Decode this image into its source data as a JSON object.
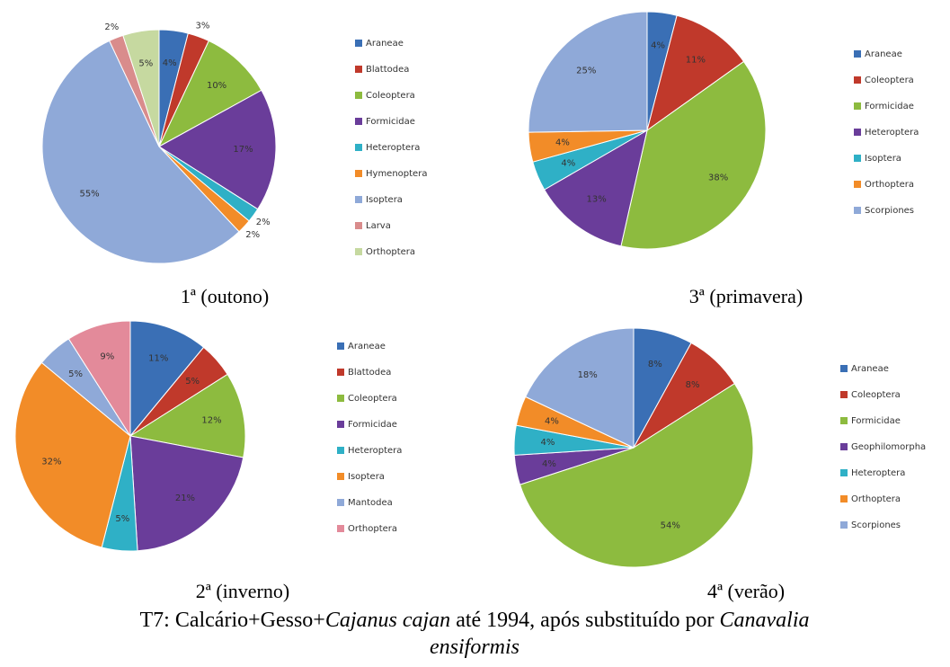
{
  "chart_data": [
    {
      "type": "pie",
      "title": "1ª (outono)",
      "categories": [
        "Araneae",
        "Blattodea",
        "Coleoptera",
        "Formicidae",
        "Heteroptera",
        "Hymenoptera",
        "Isoptera",
        "Larva",
        "Orthoptera"
      ],
      "values": [
        4,
        3,
        10,
        17,
        2,
        2,
        55,
        2,
        5
      ],
      "value_labels": [
        "4%",
        "3%",
        "10%",
        "17%",
        "2%",
        "2%",
        "55%",
        "2%",
        "5%"
      ],
      "colors": [
        "#3a6fb5",
        "#c0392b",
        "#8dbb3f",
        "#6a3d9a",
        "#2fb0c6",
        "#f28c28",
        "#8fa9d8",
        "#d98c8c",
        "#c6d9a0"
      ]
    },
    {
      "type": "pie",
      "title": "3ª (primavera)",
      "categories": [
        "Araneae",
        "Coleoptera",
        "Formicidae",
        "Heteroptera",
        "Isoptera",
        "Orthoptera",
        "Scorpiones"
      ],
      "values": [
        4,
        11,
        38,
        13,
        4,
        4,
        25
      ],
      "value_labels": [
        "4%",
        "11%",
        "38%",
        "13%",
        "4%",
        "4%",
        "25%"
      ],
      "colors": [
        "#3a6fb5",
        "#c0392b",
        "#8dbb3f",
        "#6a3d9a",
        "#2fb0c6",
        "#f28c28",
        "#8fa9d8"
      ]
    },
    {
      "type": "pie",
      "title": "2ª (inverno)",
      "categories": [
        "Araneae",
        "Blattodea",
        "Coleoptera",
        "Formicidae",
        "Heteroptera",
        "Isoptera",
        "Mantodea",
        "Orthoptera"
      ],
      "values": [
        11,
        5,
        12,
        21,
        5,
        32,
        5,
        9
      ],
      "value_labels": [
        "11%",
        "5%",
        "12%",
        "21%",
        "5%",
        "32%",
        "5%",
        "9%"
      ],
      "colors": [
        "#3a6fb5",
        "#c0392b",
        "#8dbb3f",
        "#6a3d9a",
        "#2fb0c6",
        "#f28c28",
        "#8fa9d8",
        "#e38a9a"
      ]
    },
    {
      "type": "pie",
      "title": "4ª (verão)",
      "categories": [
        "Araneae",
        "Coleoptera",
        "Formicidae",
        "Geophilomorpha",
        "Heteroptera",
        "Orthoptera",
        "Scorpiones"
      ],
      "values": [
        8,
        8,
        54,
        4,
        4,
        4,
        18
      ],
      "value_labels": [
        "8%",
        "8%",
        "54%",
        "4%",
        "4%",
        "4%",
        "18%"
      ],
      "colors": [
        "#3a6fb5",
        "#c0392b",
        "#8dbb3f",
        "#6a3d9a",
        "#2fb0c6",
        "#f28c28",
        "#8fa9d8"
      ]
    }
  ],
  "caption": [
    "T7: Calcário+Gesso+",
    "Cajanus cajan",
    " até 1994, após substituído por ",
    "Canavalia",
    "ensiformis"
  ]
}
